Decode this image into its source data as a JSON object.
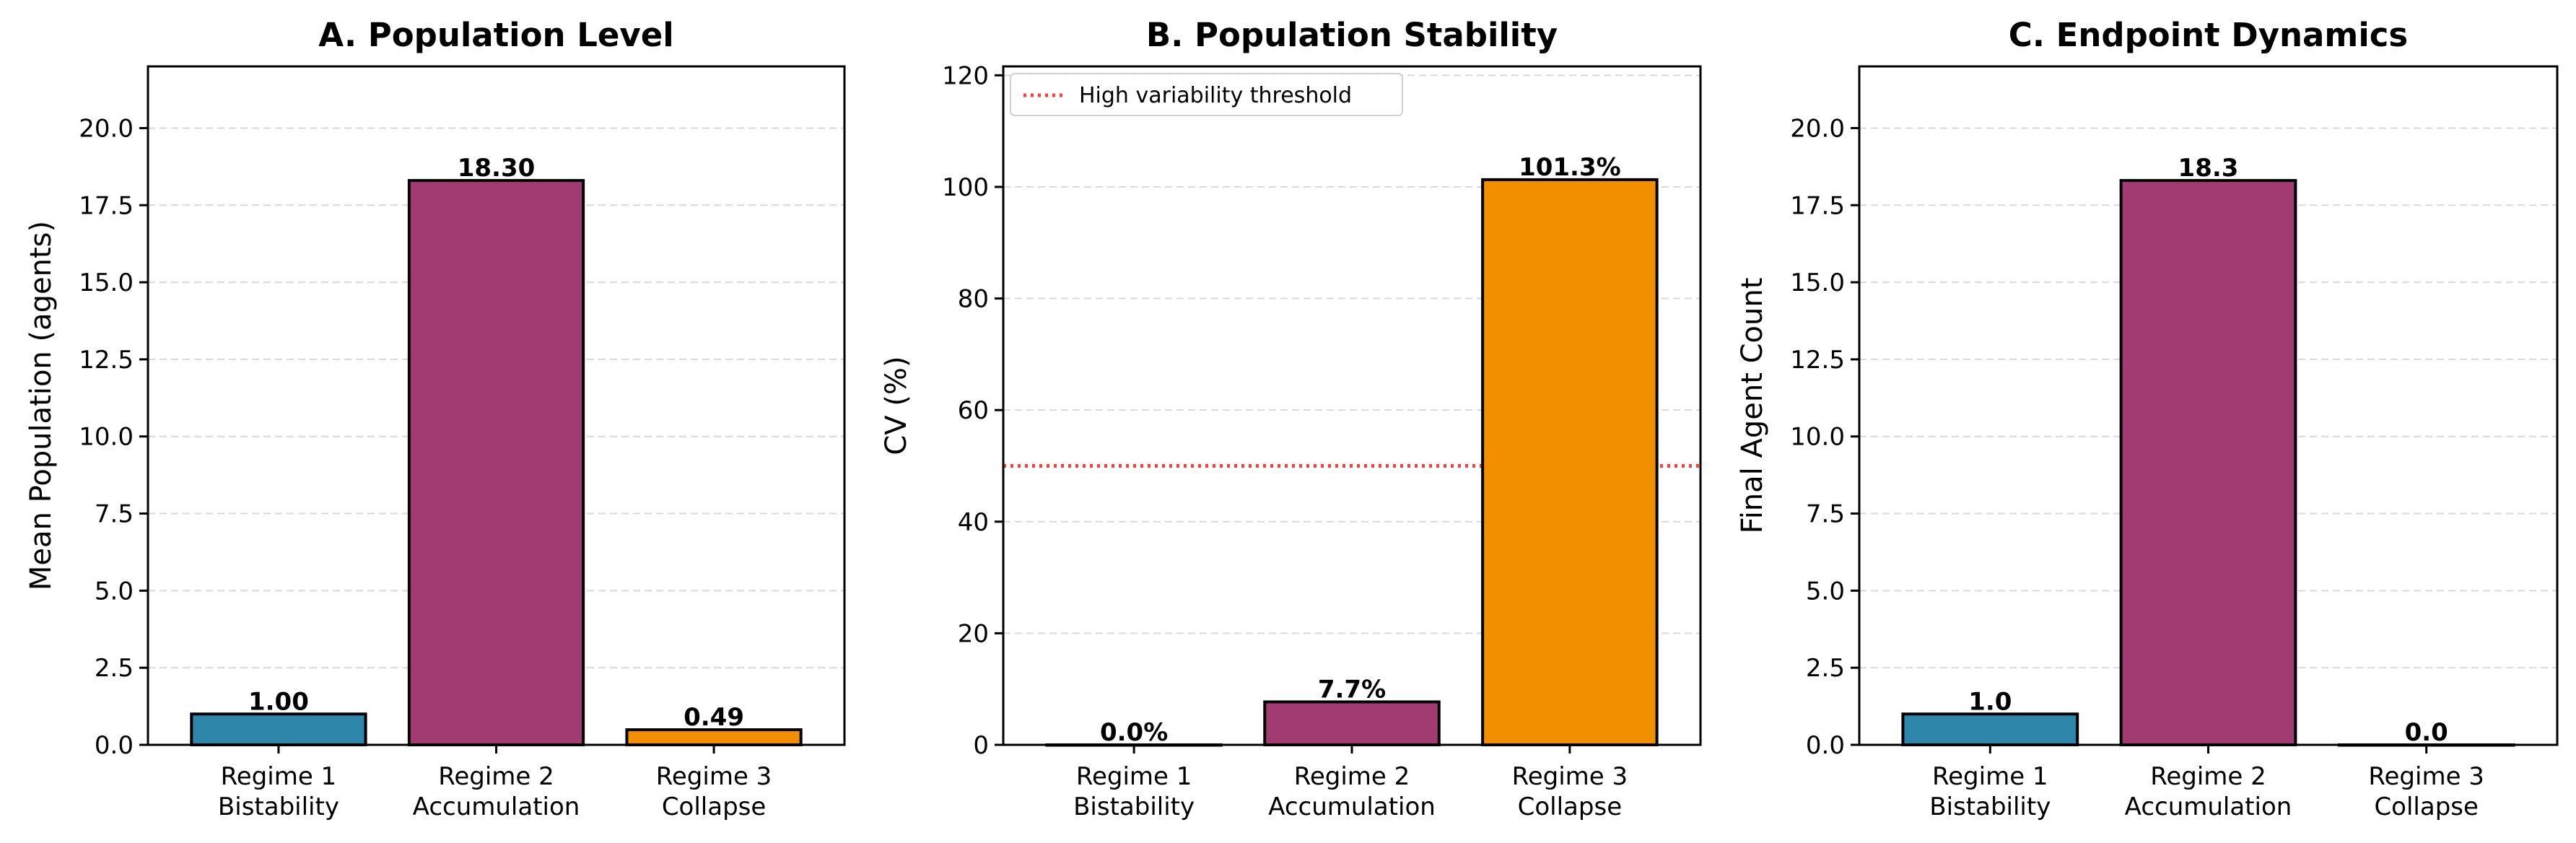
{
  "chart_data": [
    {
      "type": "bar",
      "title": "A. Population Level",
      "xlabel": "",
      "ylabel": "Mean Population (agents)",
      "categories": [
        "Regime 1\nBistability",
        "Regime 2\nAccumulation",
        "Regime 3\nCollapse"
      ],
      "values": [
        1.0,
        18.3,
        0.49
      ],
      "value_labels": [
        "1.00",
        "18.30",
        "0.49"
      ],
      "colors": [
        "#2e86ab",
        "#a23b72",
        "#f18f01"
      ],
      "ylim": [
        0,
        22
      ],
      "yticks": [
        0,
        2.5,
        5,
        7.5,
        10,
        12.5,
        15,
        17.5,
        20
      ],
      "ytick_labels": [
        "0.0",
        "2.5",
        "5.0",
        "7.5",
        "10.0",
        "12.5",
        "15.0",
        "17.5",
        "20.0"
      ],
      "grid": "y-dashed"
    },
    {
      "type": "bar",
      "title": "B. Population Stability",
      "xlabel": "",
      "ylabel": "CV (%)",
      "categories": [
        "Regime 1\nBistability",
        "Regime 2\nAccumulation",
        "Regime 3\nCollapse"
      ],
      "values": [
        0.0,
        7.7,
        101.3
      ],
      "value_labels": [
        "0.0%",
        "7.7%",
        "101.3%"
      ],
      "colors": [
        "#2e86ab",
        "#a23b72",
        "#f18f01"
      ],
      "ylim": [
        0,
        121.6
      ],
      "yticks": [
        0,
        20,
        40,
        60,
        80,
        100,
        120
      ],
      "ytick_labels": [
        "0",
        "20",
        "40",
        "60",
        "80",
        "100",
        "120"
      ],
      "grid": "y-dashed",
      "reference_line": {
        "y": 50,
        "label": "High variability threshold",
        "color": "#ff0000",
        "style": "dotted"
      },
      "legend": {
        "placement": "upper-left",
        "entries": [
          "High variability threshold"
        ]
      }
    },
    {
      "type": "bar",
      "title": "C. Endpoint Dynamics",
      "xlabel": "",
      "ylabel": "Final Agent Count",
      "categories": [
        "Regime 1\nBistability",
        "Regime 2\nAccumulation",
        "Regime 3\nCollapse"
      ],
      "values": [
        1.0,
        18.3,
        0.0
      ],
      "value_labels": [
        "1.0",
        "18.3",
        "0.0"
      ],
      "colors": [
        "#2e86ab",
        "#a23b72",
        "#f18f01"
      ],
      "ylim": [
        0,
        22
      ],
      "yticks": [
        0,
        2.5,
        5,
        7.5,
        10,
        12.5,
        15,
        17.5,
        20
      ],
      "ytick_labels": [
        "0.0",
        "2.5",
        "5.0",
        "7.5",
        "10.0",
        "12.5",
        "15.0",
        "17.5",
        "20.0"
      ],
      "grid": "y-dashed"
    }
  ]
}
